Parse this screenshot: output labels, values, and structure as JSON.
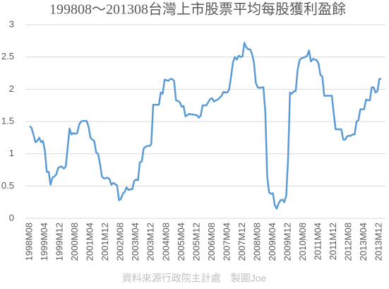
{
  "chart_data": {
    "type": "line",
    "title": "199808～201308台灣上市股票平均每股獲利盈餘",
    "source": "資料來源行政院主計處　製圖Joe",
    "categories": [
      "1998M08",
      null,
      null,
      null,
      null,
      null,
      null,
      null,
      "1999M04",
      null,
      null,
      null,
      null,
      null,
      null,
      null,
      "1999M12",
      null,
      null,
      null,
      null,
      null,
      null,
      null,
      "2000M08",
      null,
      null,
      null,
      null,
      null,
      null,
      null,
      "2001M04",
      null,
      null,
      null,
      null,
      null,
      null,
      null,
      "2001M12",
      null,
      null,
      null,
      null,
      null,
      null,
      null,
      "2002M08",
      null,
      null,
      null,
      null,
      null,
      null,
      null,
      "2003M04",
      null,
      null,
      null,
      null,
      null,
      null,
      null,
      "2003M12",
      null,
      null,
      null,
      null,
      null,
      null,
      null,
      "2004M08",
      null,
      null,
      null,
      null,
      null,
      null,
      null,
      "2005M04",
      null,
      null,
      null,
      null,
      null,
      null,
      null,
      "2005M12",
      null,
      null,
      null,
      null,
      null,
      null,
      null,
      "2006M08",
      null,
      null,
      null,
      null,
      null,
      null,
      null,
      "2007M04",
      null,
      null,
      null,
      null,
      null,
      null,
      null,
      "2007M12",
      null,
      null,
      null,
      null,
      null,
      null,
      null,
      "2008M08",
      null,
      null,
      null,
      null,
      null,
      null,
      null,
      "2009M04",
      null,
      null,
      null,
      null,
      null,
      null,
      null,
      "2009M12",
      null,
      null,
      null,
      null,
      null,
      null,
      null,
      "2010M08",
      null,
      null,
      null,
      null,
      null,
      null,
      null,
      "2011M04",
      null,
      null,
      null,
      null,
      null,
      null,
      null,
      "2011M12",
      null,
      null,
      null,
      null,
      null,
      null,
      null,
      "2012M08",
      null,
      null,
      null,
      null,
      null,
      null,
      null,
      "2013M04",
      null,
      null,
      null,
      null,
      null,
      null,
      null,
      "2013M12",
      null
    ],
    "values": [
      1.43,
      1.4,
      1.3,
      1.18,
      1.2,
      1.25,
      1.18,
      1.2,
      1.05,
      0.72,
      0.72,
      0.52,
      0.63,
      0.65,
      0.68,
      0.78,
      0.8,
      0.8,
      0.77,
      0.8,
      1.1,
      1.39,
      1.3,
      1.32,
      1.31,
      1.32,
      1.45,
      1.5,
      1.51,
      1.51,
      1.51,
      1.42,
      1.25,
      1.22,
      1.2,
      1.02,
      1.0,
      0.85,
      0.65,
      0.62,
      0.62,
      0.63,
      0.61,
      0.52,
      0.55,
      0.53,
      0.51,
      0.28,
      0.3,
      0.38,
      0.41,
      0.48,
      0.44,
      0.45,
      0.45,
      0.58,
      0.6,
      0.59,
      0.87,
      0.88,
      1.08,
      1.11,
      1.12,
      1.12,
      1.15,
      1.76,
      1.76,
      1.76,
      1.76,
      1.95,
      1.93,
      2.15,
      2.14,
      2.13,
      2.16,
      2.16,
      2.13,
      1.83,
      1.82,
      1.8,
      1.73,
      1.74,
      1.58,
      1.6,
      1.62,
      1.61,
      1.61,
      1.6,
      1.6,
      1.56,
      1.59,
      1.75,
      1.75,
      1.75,
      1.8,
      1.85,
      1.86,
      1.81,
      1.83,
      1.84,
      1.87,
      1.9,
      1.96,
      1.95,
      1.95,
      2.0,
      2.2,
      2.42,
      2.5,
      2.46,
      2.52,
      2.5,
      2.51,
      2.72,
      2.65,
      2.62,
      2.62,
      2.55,
      2.42,
      2.1,
      2.03,
      2.02,
      2.03,
      2.03,
      1.65,
      0.65,
      0.4,
      0.38,
      0.39,
      0.2,
      0.15,
      0.23,
      0.28,
      0.29,
      0.25,
      0.35,
      0.93,
      1.95,
      1.93,
      1.97,
      1.97,
      2.3,
      2.45,
      2.48,
      2.49,
      2.5,
      2.52,
      2.6,
      2.43,
      2.47,
      2.46,
      2.45,
      2.4,
      2.22,
      2.2,
      1.9,
      1.9,
      1.9,
      1.9,
      1.9,
      1.63,
      1.38,
      1.38,
      1.38,
      1.38,
      1.22,
      1.22,
      1.27,
      1.28,
      1.28,
      1.3,
      1.3,
      1.5,
      1.52,
      1.69,
      1.69,
      1.69,
      1.84,
      1.83,
      1.83,
      2.03,
      2.03,
      1.95,
      1.97,
      2.16,
      2.16
    ],
    "color": "#5b9bd5",
    "ylim": [
      0,
      3
    ],
    "yticks": [
      0,
      {
        "value": 0.5,
        "label": "0.5"
      },
      1,
      {
        "value": 1.5,
        "label": "1.5"
      },
      2,
      {
        "value": 2.5,
        "label": "2.5"
      },
      3
    ],
    "grid": true
  }
}
